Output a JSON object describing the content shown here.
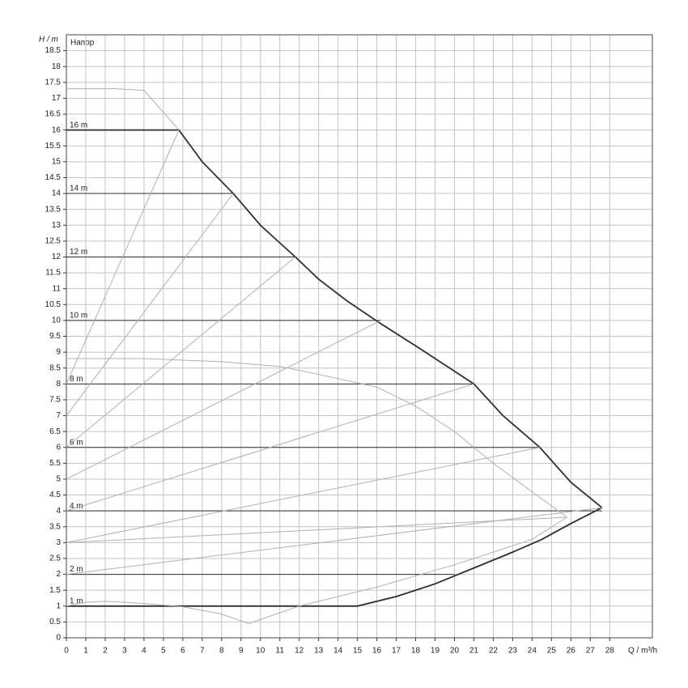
{
  "chart_data": {
    "type": "line",
    "title": "Напор",
    "x_label": "Q / m³/h",
    "y_label": "H / m",
    "xlim": [
      0,
      30.2
    ],
    "ylim": [
      0,
      19
    ],
    "xticks": [
      0,
      1,
      2,
      3,
      4,
      5,
      6,
      7,
      8,
      9,
      10,
      11,
      12,
      13,
      14,
      15,
      16,
      17,
      18,
      19,
      20,
      21,
      22,
      23,
      24,
      25,
      26,
      27,
      28
    ],
    "yticks": [
      0,
      0.5,
      1,
      1.5,
      2,
      2.5,
      3,
      3.5,
      4,
      4.5,
      5,
      5.5,
      6,
      6.5,
      7,
      7.5,
      8,
      8.5,
      9,
      9.5,
      10,
      10.5,
      11,
      11.5,
      12,
      12.5,
      13,
      13.5,
      14,
      14.5,
      15,
      15.5,
      16,
      16.5,
      17,
      17.5,
      18,
      18.5
    ],
    "grid": true,
    "series": [
      {
        "label": "16 m",
        "color": "#2b2f3a",
        "width": 1.8,
        "x": [
          0,
          5.8,
          7,
          8.6,
          10,
          11.8,
          13,
          14.5,
          16.2,
          18,
          20,
          21,
          22.5,
          24.4,
          26,
          27.6
        ],
        "values": [
          16,
          16,
          15,
          14,
          13,
          12,
          11.3,
          10.6,
          9.9,
          9.2,
          8.4,
          8,
          7,
          6,
          4.9,
          4.1
        ]
      },
      {
        "label": "1 m",
        "color": "#2b2f3a",
        "width": 1.8,
        "x": [
          0,
          15,
          17,
          19,
          21,
          23,
          24.5,
          26,
          27.6
        ],
        "values": [
          1,
          1,
          1.3,
          1.7,
          2.2,
          2.7,
          3.1,
          3.6,
          4.1
        ]
      },
      {
        "label": "14 m",
        "color": "#2b2f3a",
        "width": 1,
        "x": [
          0,
          8.6
        ],
        "values": [
          14,
          14
        ]
      },
      {
        "label": "12 m",
        "color": "#2b2f3a",
        "width": 1,
        "x": [
          0,
          11.8
        ],
        "values": [
          12,
          12
        ]
      },
      {
        "label": "10 m",
        "color": "#2b2f3a",
        "width": 1,
        "x": [
          0,
          16.2
        ],
        "values": [
          10,
          10
        ]
      },
      {
        "label": "8 m",
        "color": "#2b2f3a",
        "width": 1,
        "x": [
          0,
          21
        ],
        "values": [
          8,
          8
        ]
      },
      {
        "label": "6 m",
        "color": "#2b2f3a",
        "width": 1,
        "x": [
          0,
          24.4
        ],
        "values": [
          6,
          6
        ]
      },
      {
        "label": "4 m",
        "color": "#2b2f3a",
        "width": 1,
        "x": [
          0,
          27.6
        ],
        "values": [
          4,
          4
        ]
      },
      {
        "label": "2 m",
        "color": "#2b2f3a",
        "width": 1,
        "x": [
          0,
          20
        ],
        "values": [
          2,
          2
        ]
      },
      {
        "color": "#b0b0b0",
        "width": 1,
        "x": [
          0,
          2.5,
          4,
          5.8
        ],
        "values": [
          17.3,
          17.3,
          17.25,
          16
        ]
      },
      {
        "color": "#b0b0b0",
        "width": 1,
        "x": [
          0,
          4,
          8,
          11,
          13,
          16,
          18,
          20,
          22,
          24,
          25.8
        ],
        "values": [
          8.8,
          8.8,
          8.7,
          8.55,
          8.3,
          7.9,
          7.3,
          6.5,
          5.5,
          4.6,
          3.8
        ]
      },
      {
        "color": "#b0b0b0",
        "width": 1,
        "x": [
          0,
          1,
          2,
          3,
          4,
          6,
          8,
          9.4,
          12,
          16,
          20,
          24,
          25.8
        ],
        "values": [
          1,
          1.12,
          1.15,
          1.12,
          1.08,
          0.98,
          0.75,
          0.45,
          1,
          1.6,
          2.3,
          3.1,
          3.8
        ]
      },
      {
        "color": "#b0b0b0",
        "width": 1,
        "x": [
          0,
          5.8
        ],
        "values": [
          8,
          16
        ]
      },
      {
        "color": "#b0b0b0",
        "width": 1,
        "x": [
          0,
          8.6
        ],
        "values": [
          7,
          14
        ]
      },
      {
        "color": "#b0b0b0",
        "width": 1,
        "x": [
          0,
          11.8
        ],
        "values": [
          6,
          12
        ]
      },
      {
        "color": "#b0b0b0",
        "width": 1,
        "x": [
          0,
          16.2
        ],
        "values": [
          5,
          10
        ]
      },
      {
        "color": "#b0b0b0",
        "width": 1,
        "x": [
          0,
          21
        ],
        "values": [
          4,
          8
        ]
      },
      {
        "color": "#b0b0b0",
        "width": 1,
        "x": [
          0,
          24.4
        ],
        "values": [
          3,
          6
        ]
      },
      {
        "color": "#b0b0b0",
        "width": 1,
        "x": [
          0,
          25.8
        ],
        "values": [
          3,
          3.8
        ]
      },
      {
        "color": "#b0b0b0",
        "width": 1,
        "x": [
          0,
          27.6
        ],
        "values": [
          2,
          4.1
        ]
      }
    ]
  }
}
